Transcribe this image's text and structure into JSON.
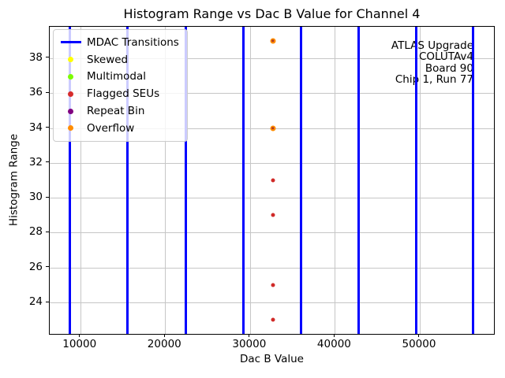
{
  "figure": {
    "title": "Histogram Range vs Dac B Value for Channel 4",
    "annotation": {
      "lines": [
        "ATLAS Upgrade",
        "COLUTAv4",
        "Board 90",
        "Chip 1, Run 77"
      ]
    },
    "legend": {
      "items": [
        {
          "label": "MDAC Transitions",
          "marker": "line",
          "color": "#0000ff"
        },
        {
          "label": "Skewed",
          "marker": "dot",
          "color": "#ffff00"
        },
        {
          "label": "Multimodal",
          "marker": "dot",
          "color": "#7cfc00"
        },
        {
          "label": "Flagged SEUs",
          "marker": "dot",
          "color": "#d62c2c"
        },
        {
          "label": "Repeat Bin",
          "marker": "dot",
          "color": "#800080"
        },
        {
          "label": "Overflow",
          "marker": "dot",
          "color": "#ff8c00"
        }
      ]
    }
  },
  "chart_data": {
    "type": "scatter",
    "title": "Histogram Range vs Dac B Value for Channel 4",
    "xlabel": "Dac B Value",
    "ylabel": "Histogram Range",
    "xlim": [
      6400,
      58740
    ],
    "ylim": [
      22.2,
      39.8
    ],
    "xticks": [
      10000,
      20000,
      30000,
      40000,
      50000
    ],
    "yticks": [
      24,
      26,
      28,
      30,
      32,
      34,
      36,
      38
    ],
    "grid": true,
    "grid_color": "#c6c6c6",
    "mdac_transitions": {
      "color": "#0000ff",
      "x_values": [
        8800,
        15600,
        22450,
        29200,
        36000,
        42750,
        49550,
        56300
      ]
    },
    "series": [
      {
        "name": "Flagged SEUs",
        "color": "#d62c2c",
        "points": [
          [
            32700,
            23
          ],
          [
            32700,
            25
          ],
          [
            32700,
            29
          ],
          [
            32700,
            31
          ],
          [
            32700,
            34
          ],
          [
            32700,
            39
          ]
        ]
      },
      {
        "name": "Overflow",
        "color": "#ff8c00",
        "points": [
          [
            32700,
            34
          ],
          [
            32700,
            39
          ]
        ]
      }
    ],
    "markers_draw": [
      {
        "x": 32700,
        "y": 23,
        "color": "#d02a28",
        "size": 5
      },
      {
        "x": 32700,
        "y": 25,
        "color": "#d02a28",
        "size": 5
      },
      {
        "x": 32700,
        "y": 29,
        "color": "#d02a28",
        "size": 5
      },
      {
        "x": 32700,
        "y": 31,
        "color": "#d02a28",
        "size": 5
      },
      {
        "x": 32700,
        "y": 34,
        "color": "#ff8c00",
        "size": 7
      },
      {
        "x": 32700,
        "y": 34,
        "color": "#a8342a",
        "size": 3.5
      },
      {
        "x": 32700,
        "y": 39,
        "color": "#ff8c00",
        "size": 7
      },
      {
        "x": 32700,
        "y": 39,
        "color": "#a8342a",
        "size": 3.5
      }
    ]
  }
}
